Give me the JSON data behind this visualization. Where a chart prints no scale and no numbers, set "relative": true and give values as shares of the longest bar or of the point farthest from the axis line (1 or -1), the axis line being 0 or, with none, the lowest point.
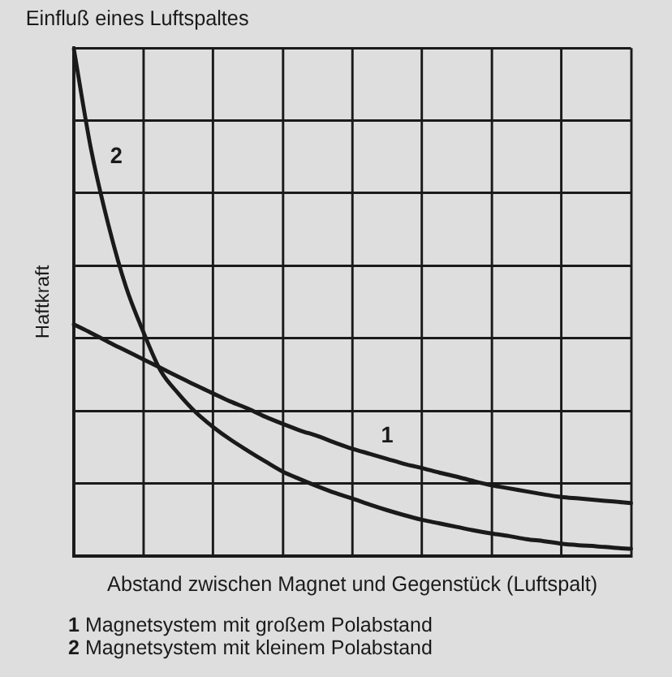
{
  "chart_data": {
    "type": "line",
    "title": "Einfluß eines Luftspaltes",
    "xlabel": "Abstand zwischen Magnet und Gegenstück (Luftspalt)",
    "ylabel": "Haftkraft",
    "relative": true,
    "grid": true,
    "marker": "none",
    "line_style": "solid",
    "annotations": [
      "Magnetsystem mit großem Polabstand",
      "Magnetsystem mit kleinem Polabstand"
    ],
    "categories": [
      null,
      null,
      null,
      null,
      null,
      null,
      null,
      null,
      null,
      null,
      null,
      null,
      null,
      null,
      null,
      null,
      null,
      null,
      null,
      null,
      null,
      null,
      null,
      null,
      null,
      null,
      null,
      null,
      null,
      null,
      null,
      null,
      null
    ],
    "series": [
      {
        "name": "1",
        "color": "#1a1a1a",
        "values": [
          0.456,
          0.439,
          0.421,
          0.404,
          0.387,
          0.37,
          0.353,
          0.336,
          0.32,
          0.304,
          0.29,
          0.274,
          0.26,
          0.247,
          0.236,
          0.223,
          0.211,
          0.201,
          0.191,
          0.181,
          0.173,
          0.164,
          0.156,
          0.147,
          0.139,
          0.133,
          0.127,
          0.121,
          0.116,
          0.113,
          0.11,
          0.107,
          0.104
        ]
      },
      {
        "name": "2",
        "color": "#1a1a1a",
        "values": [
          1,
          0.8,
          0.651,
          0.53,
          0.441,
          0.364,
          0.32,
          0.283,
          0.254,
          0.229,
          0.207,
          0.186,
          0.166,
          0.151,
          0.137,
          0.124,
          0.113,
          0.101,
          0.09,
          0.08,
          0.071,
          0.064,
          0.057,
          0.05,
          0.044,
          0.039,
          0.033,
          0.029,
          0.024,
          0.021,
          0.019,
          0.016,
          0.014
        ]
      }
    ]
  }
}
